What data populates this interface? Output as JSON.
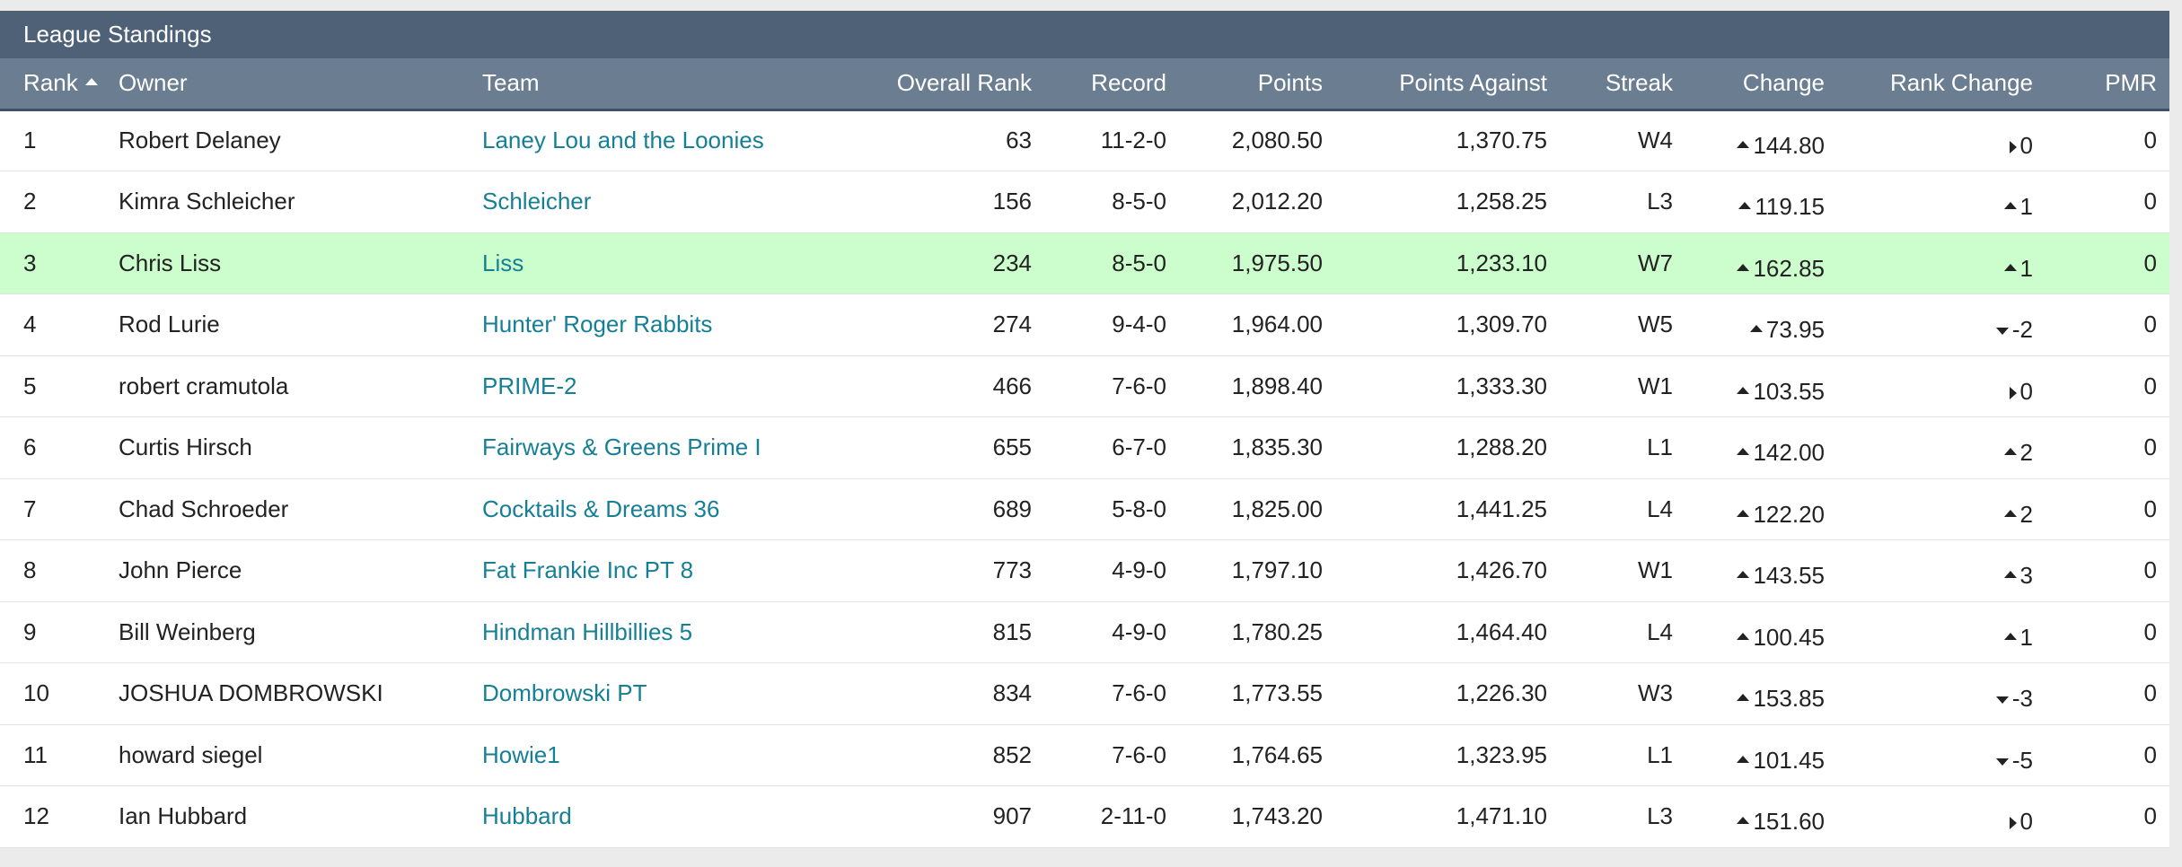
{
  "panel": {
    "title": "League Standings"
  },
  "columns": {
    "rank": "Rank",
    "owner": "Owner",
    "team": "Team",
    "overall_rank": "Overall Rank",
    "record": "Record",
    "points": "Points",
    "points_against": "Points Against",
    "streak": "Streak",
    "change": "Change",
    "rank_change": "Rank Change",
    "pmr": "PMR"
  },
  "sort": {
    "column": "Rank",
    "direction": "ascending"
  },
  "highlight_color": "#ccfdcc",
  "link_color": "#157f96",
  "header_color": "#4e6177",
  "rows": [
    {
      "rank": "1",
      "owner": "Robert Delaney",
      "team": "Laney Lou and the Loonies",
      "overall": "63",
      "record": "11-2-0",
      "points": "2,080.50",
      "pa": "1,370.75",
      "streak": "W4",
      "change": "144.80",
      "change_dir": "up",
      "rank_change": "0",
      "rank_dir": "none",
      "pmr": "0",
      "highlight": false
    },
    {
      "rank": "2",
      "owner": "Kimra Schleicher",
      "team": "Schleicher",
      "overall": "156",
      "record": "8-5-0",
      "points": "2,012.20",
      "pa": "1,258.25",
      "streak": "L3",
      "change": "119.15",
      "change_dir": "up",
      "rank_change": "1",
      "rank_dir": "up",
      "pmr": "0",
      "highlight": false
    },
    {
      "rank": "3",
      "owner": "Chris Liss",
      "team": "Liss",
      "overall": "234",
      "record": "8-5-0",
      "points": "1,975.50",
      "pa": "1,233.10",
      "streak": "W7",
      "change": "162.85",
      "change_dir": "up",
      "rank_change": "1",
      "rank_dir": "up",
      "pmr": "0",
      "highlight": true
    },
    {
      "rank": "4",
      "owner": "Rod Lurie",
      "team": "Hunter' Roger Rabbits",
      "overall": "274",
      "record": "9-4-0",
      "points": "1,964.00",
      "pa": "1,309.70",
      "streak": "W5",
      "change": "73.95",
      "change_dir": "up",
      "rank_change": "-2",
      "rank_dir": "down",
      "pmr": "0",
      "highlight": false
    },
    {
      "rank": "5",
      "owner": "robert cramutola",
      "team": "PRIME-2",
      "overall": "466",
      "record": "7-6-0",
      "points": "1,898.40",
      "pa": "1,333.30",
      "streak": "W1",
      "change": "103.55",
      "change_dir": "up",
      "rank_change": "0",
      "rank_dir": "none",
      "pmr": "0",
      "highlight": false
    },
    {
      "rank": "6",
      "owner": "Curtis Hirsch",
      "team": "Fairways & Greens Prime I",
      "overall": "655",
      "record": "6-7-0",
      "points": "1,835.30",
      "pa": "1,288.20",
      "streak": "L1",
      "change": "142.00",
      "change_dir": "up",
      "rank_change": "2",
      "rank_dir": "up",
      "pmr": "0",
      "highlight": false
    },
    {
      "rank": "7",
      "owner": "Chad Schroeder",
      "team": "Cocktails & Dreams 36",
      "overall": "689",
      "record": "5-8-0",
      "points": "1,825.00",
      "pa": "1,441.25",
      "streak": "L4",
      "change": "122.20",
      "change_dir": "up",
      "rank_change": "2",
      "rank_dir": "up",
      "pmr": "0",
      "highlight": false
    },
    {
      "rank": "8",
      "owner": "John Pierce",
      "team": "Fat Frankie Inc PT 8",
      "overall": "773",
      "record": "4-9-0",
      "points": "1,797.10",
      "pa": "1,426.70",
      "streak": "W1",
      "change": "143.55",
      "change_dir": "up",
      "rank_change": "3",
      "rank_dir": "up",
      "pmr": "0",
      "highlight": false
    },
    {
      "rank": "9",
      "owner": "Bill Weinberg",
      "team": "Hindman Hillbillies 5",
      "overall": "815",
      "record": "4-9-0",
      "points": "1,780.25",
      "pa": "1,464.40",
      "streak": "L4",
      "change": "100.45",
      "change_dir": "up",
      "rank_change": "1",
      "rank_dir": "up",
      "pmr": "0",
      "highlight": false
    },
    {
      "rank": "10",
      "owner": "JOSHUA DOMBROWSKI",
      "team": "Dombrowski PT",
      "overall": "834",
      "record": "7-6-0",
      "points": "1,773.55",
      "pa": "1,226.30",
      "streak": "W3",
      "change": "153.85",
      "change_dir": "up",
      "rank_change": "-3",
      "rank_dir": "down",
      "pmr": "0",
      "highlight": false
    },
    {
      "rank": "11",
      "owner": "howard siegel",
      "team": "Howie1",
      "overall": "852",
      "record": "7-6-0",
      "points": "1,764.65",
      "pa": "1,323.95",
      "streak": "L1",
      "change": "101.45",
      "change_dir": "up",
      "rank_change": "-5",
      "rank_dir": "down",
      "pmr": "0",
      "highlight": false
    },
    {
      "rank": "12",
      "owner": "Ian Hubbard",
      "team": "Hubbard",
      "overall": "907",
      "record": "2-11-0",
      "points": "1,743.20",
      "pa": "1,471.10",
      "streak": "L3",
      "change": "151.60",
      "change_dir": "up",
      "rank_change": "0",
      "rank_dir": "none",
      "pmr": "0",
      "highlight": false
    }
  ]
}
